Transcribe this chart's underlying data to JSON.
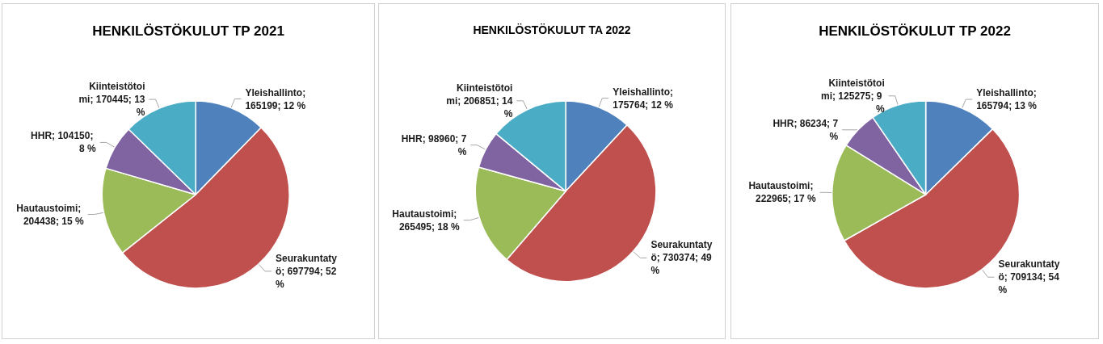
{
  "chart_data": [
    {
      "type": "pie",
      "title": "HENKILÖSTÖKULUT TP 2021",
      "categories": [
        "Yleishallinto",
        "Seurakuntatyö",
        "Hautaustoimi",
        "HHR",
        "Kiinteistötoimi"
      ],
      "values": [
        165199,
        697794,
        204438,
        104150,
        170445
      ],
      "value_labels": [
        "; 165199; 12 %",
        "; 697794; 52 %",
        "; 204438; 15 %",
        "; 104150; 8 %",
        "; 170445; 13 %"
      ],
      "colors": [
        "#4f81bd",
        "#c0504d",
        "#9bbb59",
        "#8064a2",
        "#4bacc6"
      ],
      "legend": false
    },
    {
      "type": "pie",
      "title": "HENKILÖSTÖKULUT TA 2022",
      "categories": [
        "Yleishallinto",
        "Seurakuntatyö",
        "Hautaustoimi",
        "HHR",
        "Kiinteistötoimi"
      ],
      "values": [
        175764,
        730374,
        265495,
        98960,
        206851
      ],
      "value_labels": [
        "; 175764; 12 %",
        "; 730374; 49 %",
        "; 265495; 18 %",
        "; 98960; 7 %",
        "; 206851; 14 %"
      ],
      "colors": [
        "#4f81bd",
        "#c0504d",
        "#9bbb59",
        "#8064a2",
        "#4bacc6"
      ],
      "legend": false
    },
    {
      "type": "pie",
      "title": "HENKILÖSTÖKULUT TP 2022",
      "categories": [
        "Yleishallinto",
        "Seurakuntatyö",
        "Hautaustoimi",
        "HHR",
        "Kiinteistötoimi"
      ],
      "values": [
        165794,
        709134,
        222965,
        86234,
        125275
      ],
      "value_labels": [
        "; 165794; 13 %",
        "; 709134; 54 %",
        "; 222965; 17 %",
        "; 86234; 7 %",
        "; 125275; 9 %"
      ],
      "colors": [
        "#4f81bd",
        "#c0504d",
        "#9bbb59",
        "#8064a2",
        "#4bacc6"
      ],
      "legend": false
    }
  ]
}
